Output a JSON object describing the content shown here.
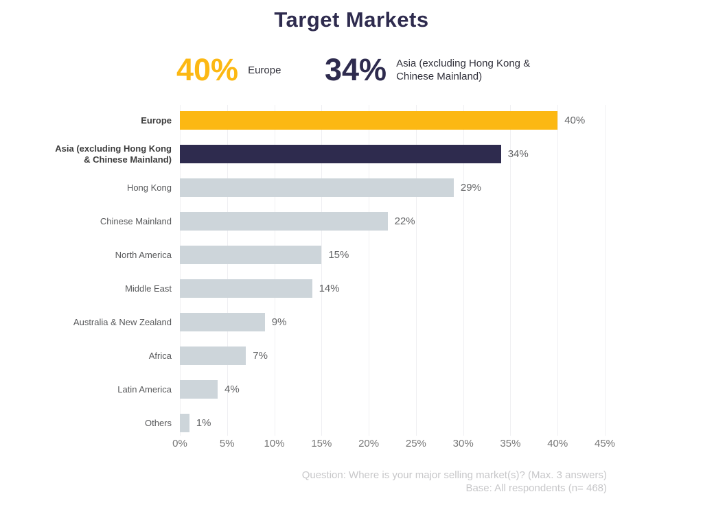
{
  "header": {
    "title": "Target Markets"
  },
  "stats": [
    {
      "value": "40%",
      "label": "Europe",
      "color": "#FCB813"
    },
    {
      "value": "34%",
      "label": "Asia (excluding Hong Kong &\nChinese Mainland)",
      "color": "#2E2B4E"
    }
  ],
  "chart_data": {
    "type": "bar",
    "orientation": "horizontal",
    "title": "Target Markets",
    "categories": [
      "Europe",
      "Asia (excluding Hong Kong\n& Chinese Mainland)",
      "Hong Kong",
      "Chinese Mainland",
      "North America",
      "Middle East",
      "Australia & New Zealand",
      "Africa",
      "Latin America",
      "Others"
    ],
    "values": [
      40,
      34,
      29,
      22,
      15,
      14,
      9,
      7,
      4,
      1
    ],
    "value_labels": [
      "40%",
      "34%",
      "29%",
      "22%",
      "15%",
      "14%",
      "9%",
      "7%",
      "4%",
      "1%"
    ],
    "bar_colors": [
      "#FCB813",
      "#2E2B4E",
      "#CDD5DA",
      "#CDD5DA",
      "#CDD5DA",
      "#CDD5DA",
      "#CDD5DA",
      "#CDD5DA",
      "#CDD5DA",
      "#CDD5DA"
    ],
    "x_ticks": [
      "0%",
      "5%",
      "10%",
      "15%",
      "20%",
      "25%",
      "30%",
      "35%",
      "40%",
      "45%"
    ],
    "xlim": [
      0,
      45
    ],
    "xlabel": "",
    "ylabel": "",
    "grid": true,
    "legend": false
  },
  "footer": {
    "question": "Question: Where is your major selling market(s)? (Max. 3 answers)",
    "base": "Base: All respondents (n= 468)"
  },
  "colors": {
    "accent_yellow": "#FCB813",
    "accent_navy": "#2E2B4E",
    "bar_gray": "#CDD5DA",
    "gridline": "#EFEFF2",
    "value_label": "#636466",
    "axis_label": "#757575",
    "footnote": "#C7C7C9"
  }
}
